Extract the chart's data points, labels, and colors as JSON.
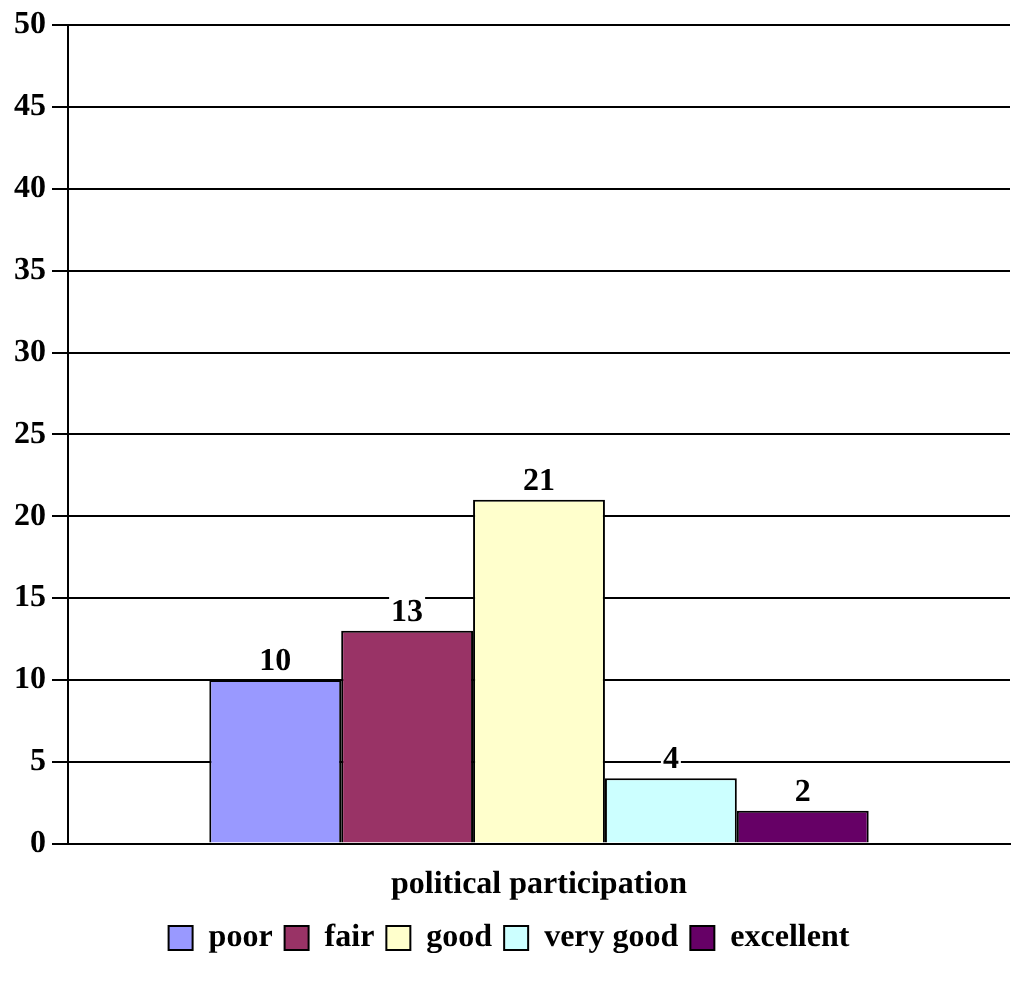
{
  "chart_data": {
    "type": "bar",
    "categories": [
      "political participation"
    ],
    "series": [
      {
        "name": "poor",
        "color": "#9999ff",
        "values": [
          10
        ]
      },
      {
        "name": "fair",
        "color": "#993366",
        "values": [
          13
        ]
      },
      {
        "name": "good",
        "color": "#ffffcc",
        "values": [
          21
        ]
      },
      {
        "name": "very good",
        "color": "#ccffff",
        "values": [
          4
        ]
      },
      {
        "name": "excellent",
        "color": "#660066",
        "values": [
          2
        ]
      }
    ],
    "ylim": [
      0,
      50
    ],
    "yticks": [
      0,
      5,
      10,
      15,
      20,
      25,
      30,
      35,
      40,
      45,
      50
    ],
    "grid": "y",
    "legend": "bottom",
    "data_labels": true
  }
}
